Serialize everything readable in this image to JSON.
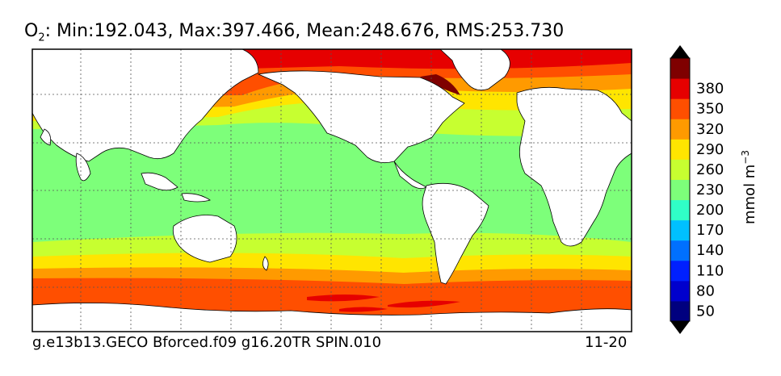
{
  "chart_data": {
    "type": "heatmap",
    "title_prefix": "O",
    "title_sub": "2",
    "title_rest": ": Min:192.043, Max:397.466, Mean:248.676, RMS:253.730",
    "footer_left": "g.e13b13.GECO Bforced.f09 g16.20TR SPIN.010",
    "footer_right": "11-20",
    "colorbar": {
      "label": "mmol m",
      "label_sup": "−3",
      "ticks": [
        50,
        80,
        110,
        140,
        170,
        200,
        230,
        260,
        290,
        320,
        350,
        380
      ],
      "colors": [
        "#00007f",
        "#0000cd",
        "#0020ff",
        "#0070ff",
        "#00c0ff",
        "#30ffc7",
        "#7dff7a",
        "#c7ff30",
        "#ffe500",
        "#ff9a00",
        "#ff4f00",
        "#e60000",
        "#7f0000"
      ],
      "extend": "both",
      "vmin": 35,
      "vmax": 395
    },
    "stats": {
      "min": 192.043,
      "max": 397.466,
      "mean": 248.676,
      "rms": 253.73
    },
    "grid": true
  }
}
